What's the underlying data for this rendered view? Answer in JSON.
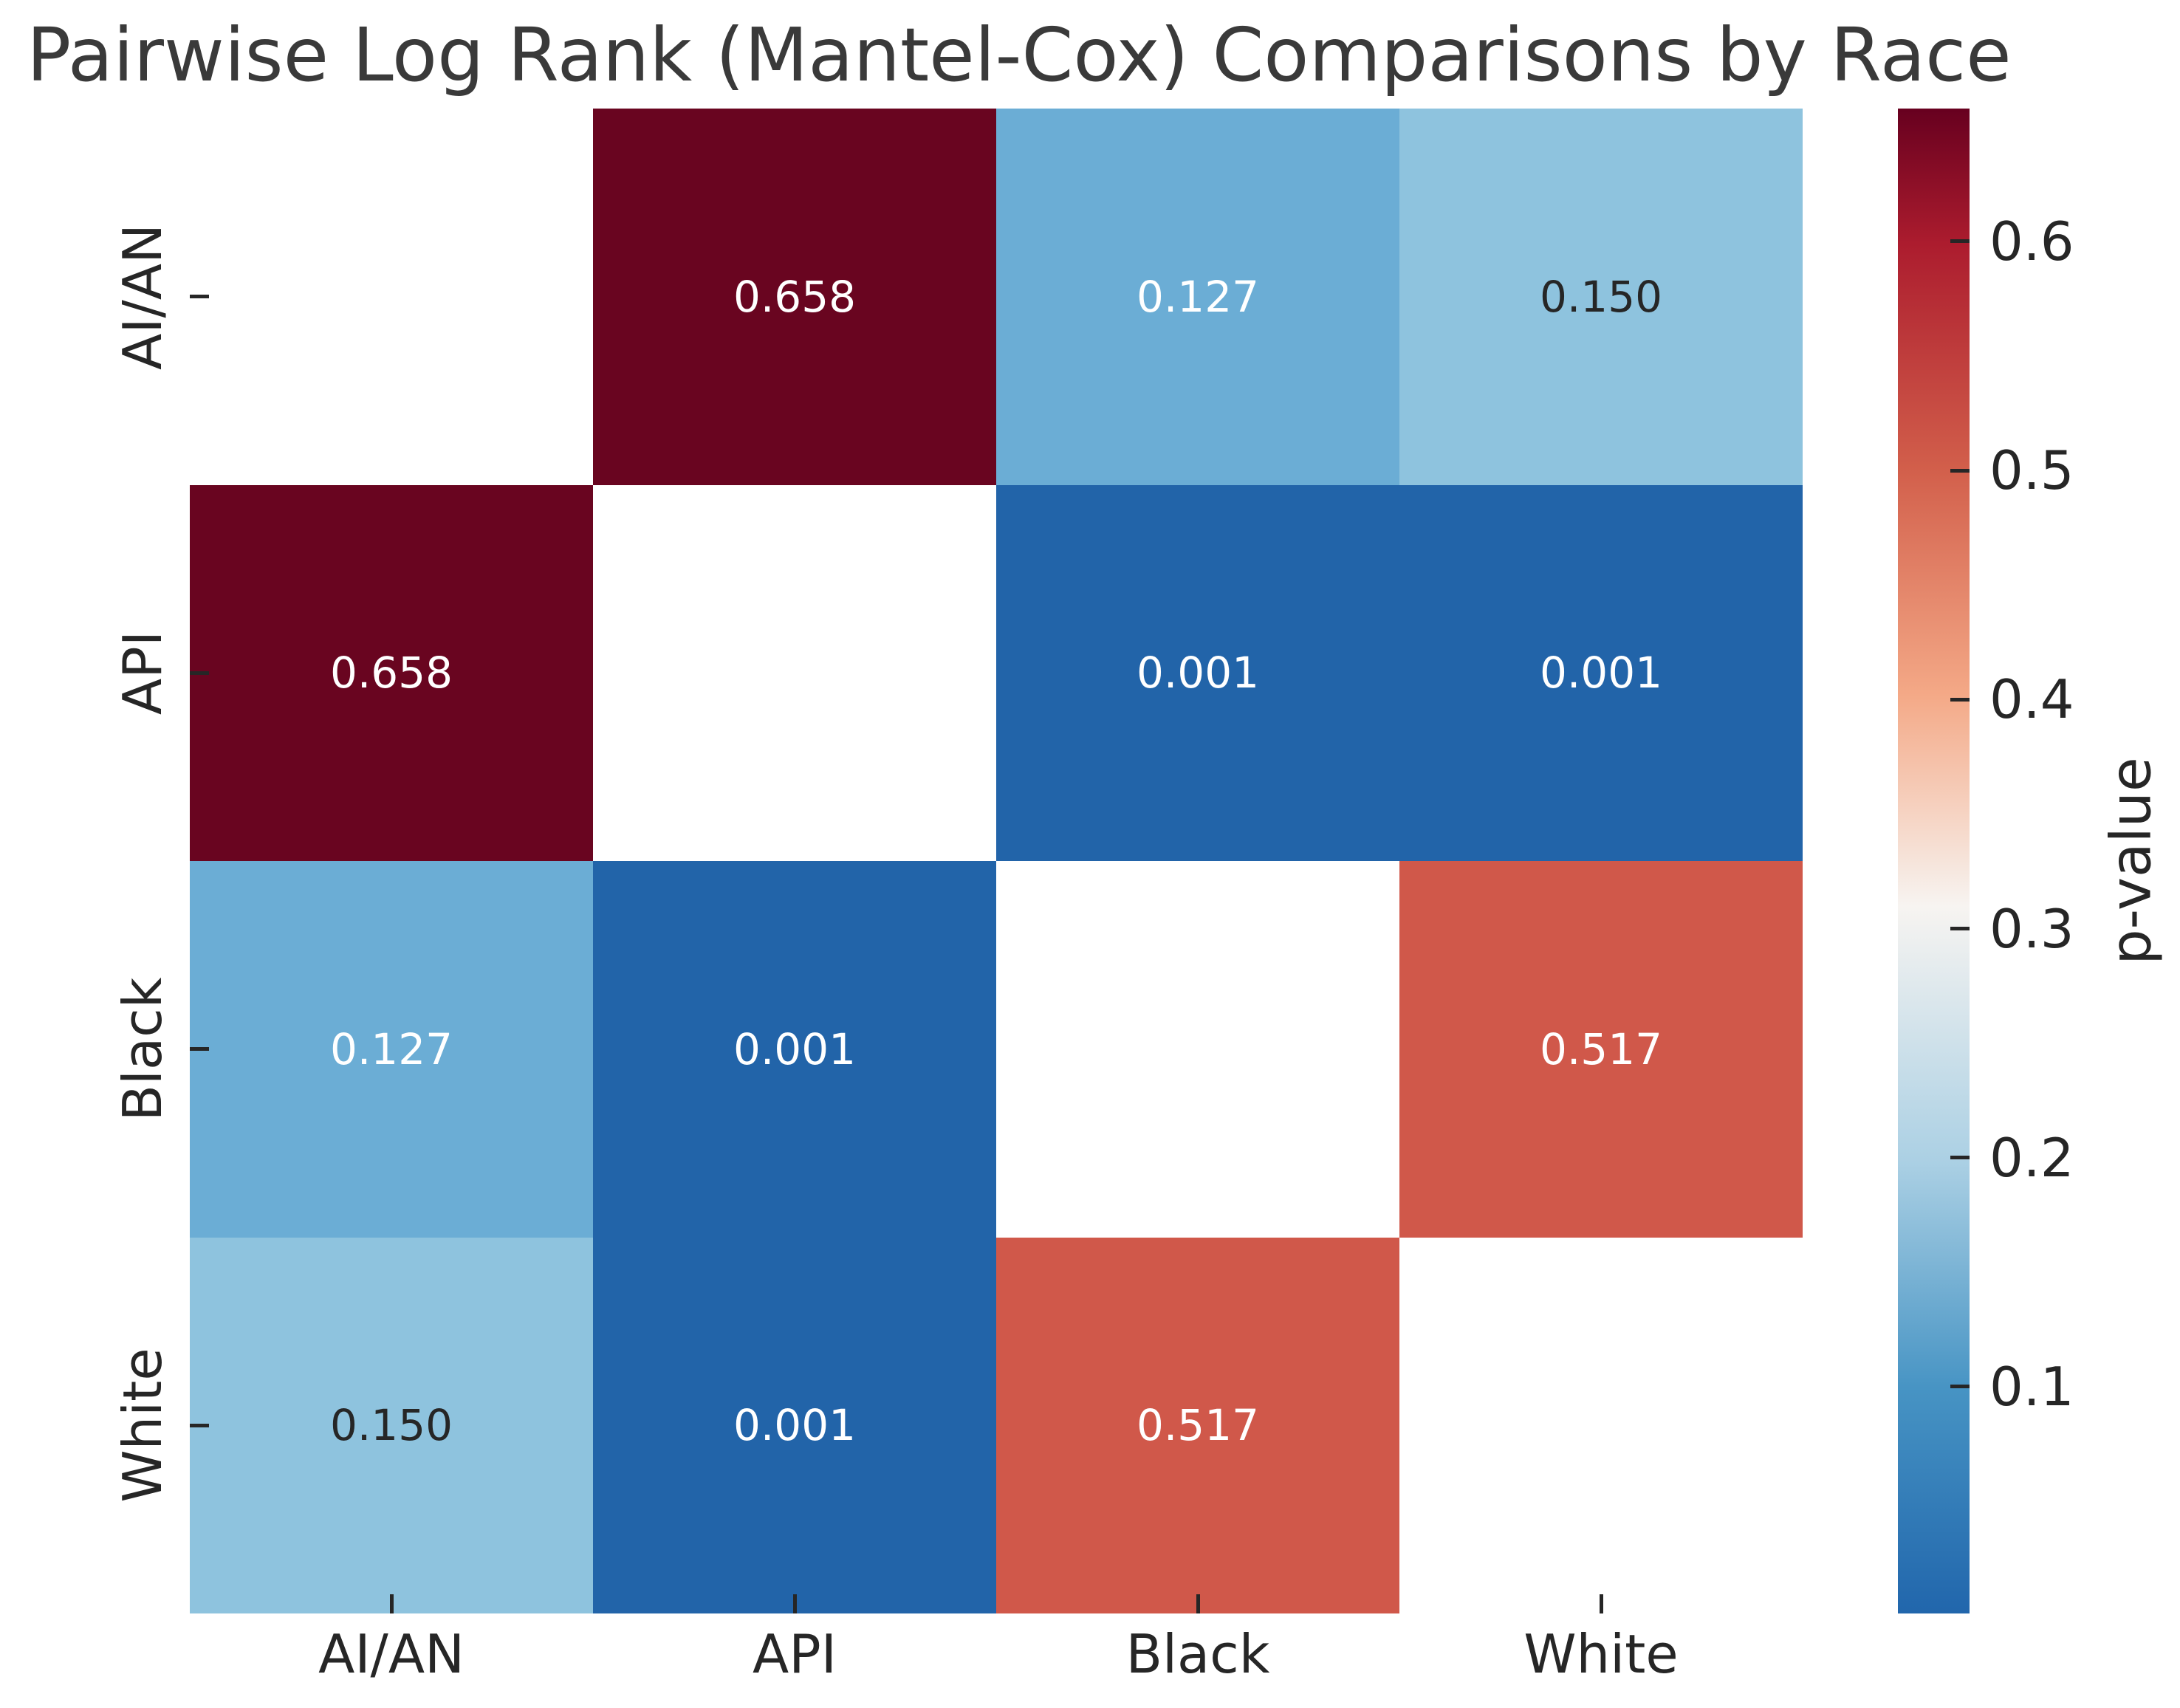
{
  "chart_data": {
    "type": "heatmap",
    "title": "Pairwise Log Rank (Mantel-Cox) Comparisons by Race",
    "categories": [
      "AI/AN",
      "API",
      "Black",
      "White"
    ],
    "matrix": [
      [
        null,
        0.658,
        0.127,
        0.15
      ],
      [
        0.658,
        null,
        0.001,
        0.001
      ],
      [
        0.127,
        0.001,
        null,
        0.517
      ],
      [
        0.15,
        0.001,
        0.517,
        null
      ]
    ],
    "labels_matrix": [
      [
        "",
        "0.658",
        "0.127",
        "0.150"
      ],
      [
        "0.658",
        "",
        "0.001",
        "0.001"
      ],
      [
        "0.127",
        "0.001",
        "",
        "0.517"
      ],
      [
        "0.150",
        "0.001",
        "0.517",
        ""
      ]
    ],
    "value_styles": {
      "0.658": {
        "bg": "#690520",
        "text": "#ffffff"
      },
      "0.127": {
        "bg": "#6badd5",
        "text": "#ffffff"
      },
      "0.150": {
        "bg": "#8ec3de",
        "text": "#262626"
      },
      "0.001": {
        "bg": "#2264a9",
        "text": "#ffffff"
      },
      "0.517": {
        "bg": "#d0584a",
        "text": "#ffffff"
      },
      "": {
        "bg": "#ffffff",
        "text": "#262626"
      }
    },
    "grid": false,
    "colorbar": {
      "label": "p-value",
      "vmin": 0.001,
      "vmax": 0.658,
      "ticks": [
        {
          "value": 0.6,
          "label": "0.6"
        },
        {
          "value": 0.5,
          "label": "0.5"
        },
        {
          "value": 0.4,
          "label": "0.4"
        },
        {
          "value": 0.3,
          "label": "0.3"
        },
        {
          "value": 0.2,
          "label": "0.2"
        },
        {
          "value": 0.1,
          "label": "0.1"
        }
      ],
      "gradient_top_to_bottom": [
        {
          "pos": 0,
          "color": "#67001f"
        },
        {
          "pos": 9,
          "color": "#ac1c2e"
        },
        {
          "pos": 24,
          "color": "#d25f4b"
        },
        {
          "pos": 39,
          "color": "#f4a987"
        },
        {
          "pos": 53,
          "color": "#f7f4f1"
        },
        {
          "pos": 70,
          "color": "#abd0e4"
        },
        {
          "pos": 85,
          "color": "#4794c4"
        },
        {
          "pos": 100,
          "color": "#2166ac"
        }
      ]
    }
  }
}
